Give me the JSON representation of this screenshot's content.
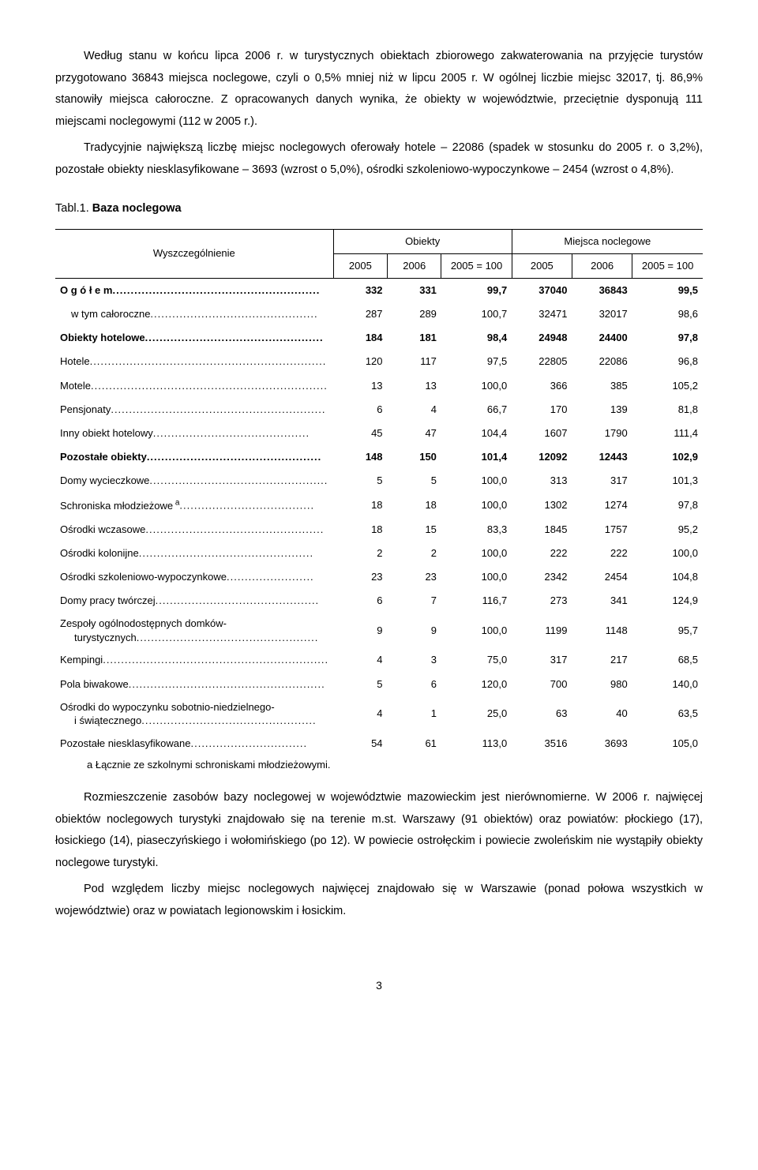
{
  "paragraphs": {
    "p1": "Według stanu w końcu lipca 2006 r. w turystycznych obiektach zbiorowego zakwaterowania na przyjęcie turystów przygotowano 36843 miejsca noclegowe, czyli o 0,5% mniej niż w lipcu 2005 r. W ogólnej liczbie miejsc 32017, tj. 86,9% stanowiły miejsca całoroczne. Z opracowanych danych wynika, że obiekty w województwie, przeciętnie dysponują 111 miejscami noclegowymi (112 w 2005 r.).",
    "p2": "Tradycyjnie największą liczbę miejsc noclegowych oferowały hotele – 22086 (spadek w stosunku do 2005 r. o 3,2%), pozostałe obiekty niesklasyfikowane – 3693 (wzrost o 5,0%), ośrodki szkoleniowo-wypoczynkowe – 2454 (wzrost o 4,8%).",
    "p3": "Rozmieszczenie zasobów bazy noclegowej w województwie mazowieckim jest nierównomierne. W 2006 r. najwięcej obiektów noclegowych turystyki znajdowało się na terenie m.st. Warszawy (91 obiektów) oraz powiatów: płockiego (17), łosickiego (14), piaseczyńskiego i wołomińskiego (po 12). W powiecie ostrołęckim i powiecie zwoleńskim nie wystąpiły obiekty noclegowe turystyki.",
    "p4": "Pod względem liczby miejsc noclegowych najwięcej znajdowało się w Warszawie (ponad połowa wszystkich w województwie) oraz w powiatach legionowskim i łosickim."
  },
  "table": {
    "caption_pre": "Tabl.1. ",
    "caption_name": "Baza noclegowa",
    "head": {
      "col0": "Wyszczególnienie",
      "grp1": "Obiekty",
      "grp2": "Miejsca noclegowe",
      "c1": "2005",
      "c2": "2006",
      "c3": "2005 = 100",
      "c4": "2005",
      "c5": "2006",
      "c6": "2005 = 100"
    },
    "rows": [
      {
        "label": "O g ó ł e m",
        "v": [
          "332",
          "331",
          "99,7",
          "37040",
          "36843",
          "99,5"
        ],
        "bold": true,
        "indent": 0
      },
      {
        "label": "w tym całoroczne",
        "v": [
          "287",
          "289",
          "100,7",
          "32471",
          "32017",
          "98,6"
        ],
        "bold": false,
        "indent": 1
      },
      {
        "label": "Obiekty hotelowe",
        "v": [
          "184",
          "181",
          "98,4",
          "24948",
          "24400",
          "97,8"
        ],
        "bold": true,
        "indent": 0
      },
      {
        "label": "Hotele",
        "v": [
          "120",
          "117",
          "97,5",
          "22805",
          "22086",
          "96,8"
        ],
        "bold": false,
        "indent": 0
      },
      {
        "label": "Motele",
        "v": [
          "13",
          "13",
          "100,0",
          "366",
          "385",
          "105,2"
        ],
        "bold": false,
        "indent": 0
      },
      {
        "label": "Pensjonaty",
        "v": [
          "6",
          "4",
          "66,7",
          "170",
          "139",
          "81,8"
        ],
        "bold": false,
        "indent": 0
      },
      {
        "label": "Inny obiekt hotelowy",
        "v": [
          "45",
          "47",
          "104,4",
          "1607",
          "1790",
          "111,4"
        ],
        "bold": false,
        "indent": 0
      },
      {
        "label": "Pozostałe obiekty",
        "v": [
          "148",
          "150",
          "101,4",
          "12092",
          "12443",
          "102,9"
        ],
        "bold": true,
        "indent": 0
      },
      {
        "label": "Domy wycieczkowe",
        "v": [
          "5",
          "5",
          "100,0",
          "313",
          "317",
          "101,3"
        ],
        "bold": false,
        "indent": 0
      },
      {
        "label": "Schroniska młodzieżowe",
        "sup": "a",
        "v": [
          "18",
          "18",
          "100,0",
          "1302",
          "1274",
          "97,8"
        ],
        "bold": false,
        "indent": 0
      },
      {
        "label": "Ośrodki wczasowe",
        "v": [
          "18",
          "15",
          "83,3",
          "1845",
          "1757",
          "95,2"
        ],
        "bold": false,
        "indent": 0
      },
      {
        "label": "Ośrodki kolonijne",
        "v": [
          "2",
          "2",
          "100,0",
          "222",
          "222",
          "100,0"
        ],
        "bold": false,
        "indent": 0
      },
      {
        "label": "Ośrodki szkoleniowo-wypoczynkowe",
        "v": [
          "23",
          "23",
          "100,0",
          "2342",
          "2454",
          "104,8"
        ],
        "bold": false,
        "indent": 0
      },
      {
        "label": "Domy pracy twórczej",
        "v": [
          "6",
          "7",
          "116,7",
          "273",
          "341",
          "124,9"
        ],
        "bold": false,
        "indent": 0
      },
      {
        "label": "Zespoły ogólnodostępnych domków turystycznych",
        "v": [
          "9",
          "9",
          "100,0",
          "1199",
          "1148",
          "95,7"
        ],
        "bold": false,
        "indent": 0,
        "wrap": true
      },
      {
        "label": "Kempingi",
        "v": [
          "4",
          "3",
          "75,0",
          "317",
          "217",
          "68,5"
        ],
        "bold": false,
        "indent": 0
      },
      {
        "label": "Pola biwakowe",
        "v": [
          "5",
          "6",
          "120,0",
          "700",
          "980",
          "140,0"
        ],
        "bold": false,
        "indent": 0
      },
      {
        "label": "Ośrodki do wypoczynku sobotnio-niedzielnego i świątecznego",
        "v": [
          "4",
          "1",
          "25,0",
          "63",
          "40",
          "63,5"
        ],
        "bold": false,
        "indent": 0,
        "wrap": true
      },
      {
        "label": "Pozostałe niesklasyfikowane",
        "v": [
          "54",
          "61",
          "113,0",
          "3516",
          "3693",
          "105,0"
        ],
        "bold": false,
        "indent": 0
      }
    ],
    "footnote": "a Łącznie ze szkolnymi schroniskami młodzieżowymi."
  },
  "pagenum": "3"
}
